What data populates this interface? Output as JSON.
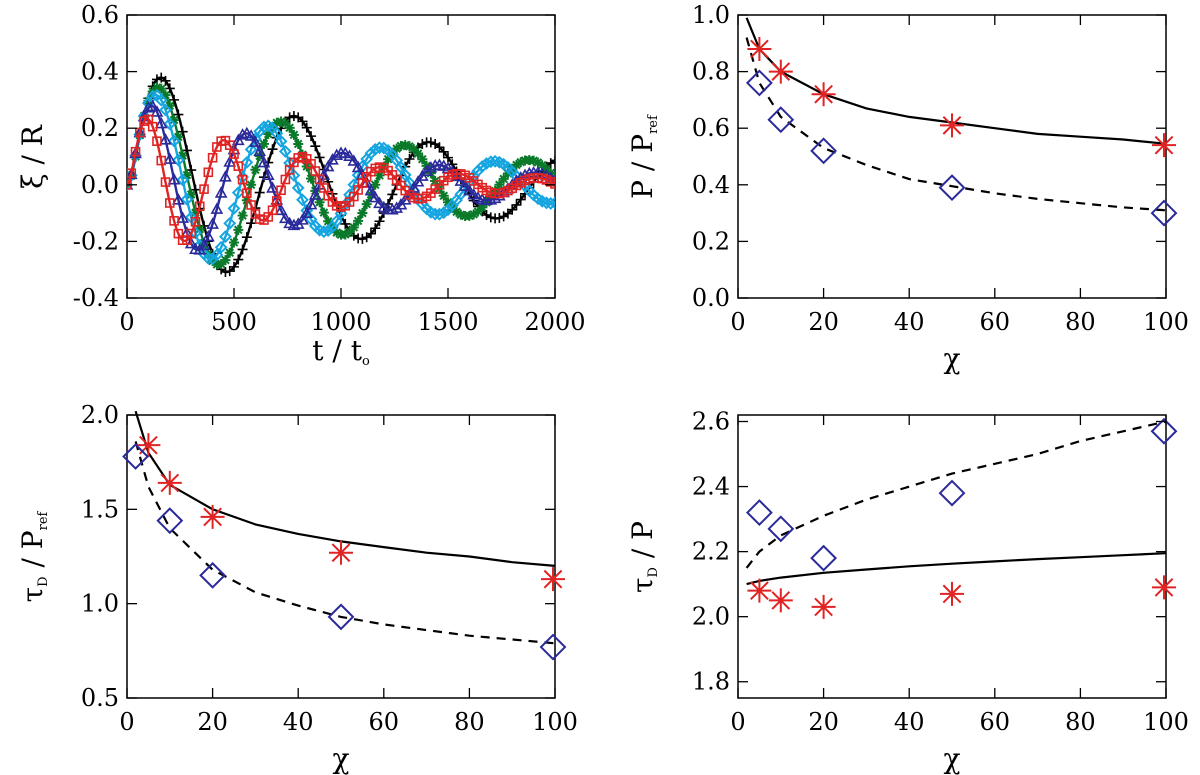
{
  "chart_data": [
    {
      "id": "xi",
      "type": "line",
      "ylabel": "ξ / R",
      "xlabel": "t / t",
      "xlabel_sub": "o",
      "xlim": [
        0,
        2000
      ],
      "ylim": [
        -0.4,
        0.6
      ],
      "xticks": [
        0,
        500,
        1000,
        1500,
        2000
      ],
      "yticks": [
        -0.4,
        -0.2,
        0.0,
        0.2,
        0.4,
        0.6
      ],
      "x_tick_labels": [
        "0",
        "500",
        "1000",
        "1500",
        "2000"
      ],
      "y_tick_labels": [
        "-0.4",
        "-0.2",
        "0.0",
        "0.2",
        "0.4",
        "0.6"
      ],
      "series": [
        {
          "name": "black",
          "color": "#000000",
          "marker": "plus",
          "amplitude": 0.44,
          "period": 630,
          "decay_time": 1320,
          "rise_time": 45
        },
        {
          "name": "green",
          "color": "#0a7a2a",
          "marker": "asterisk",
          "amplitude": 0.4,
          "period": 580,
          "decay_time": 1240,
          "rise_time": 42
        },
        {
          "name": "cyan",
          "color": "#15a5e0",
          "marker": "diamond",
          "amplitude": 0.37,
          "period": 530,
          "decay_time": 1150,
          "rise_time": 40
        },
        {
          "name": "navy",
          "color": "#2a2a9a",
          "marker": "triangle",
          "amplitude": 0.33,
          "period": 450,
          "decay_time": 940,
          "rise_time": 37
        },
        {
          "name": "red",
          "color": "#e02424",
          "marker": "square",
          "amplitude": 0.28,
          "period": 365,
          "decay_time": 790,
          "rise_time": 34
        }
      ]
    },
    {
      "id": "p",
      "type": "scatter",
      "ylabel": "P / P",
      "ylabel_sub": "ref",
      "xlabel": "χ",
      "xlim": [
        0,
        100
      ],
      "ylim": [
        0.0,
        1.0
      ],
      "xticks": [
        0,
        20,
        40,
        60,
        80,
        100
      ],
      "yticks": [
        0.0,
        0.2,
        0.4,
        0.6,
        0.8,
        1.0
      ],
      "x_tick_labels": [
        "0",
        "20",
        "40",
        "60",
        "80",
        "100"
      ],
      "y_tick_labels": [
        "0.0",
        "0.2",
        "0.4",
        "0.6",
        "0.8",
        "1.0"
      ],
      "series": [
        {
          "name": "stars",
          "marker": "asterisk",
          "color": "#e02424",
          "x": [
            5,
            10,
            20,
            50,
            100
          ],
          "y": [
            0.88,
            0.8,
            0.72,
            0.61,
            0.54
          ]
        },
        {
          "name": "diamonds",
          "marker": "diamond",
          "color": "#2a2a9a",
          "x": [
            5,
            10,
            20,
            50,
            100
          ],
          "y": [
            0.76,
            0.63,
            0.52,
            0.39,
            0.3
          ]
        },
        {
          "name": "solid fit",
          "line": "solid",
          "color": "#000000",
          "x": [
            2,
            5,
            10,
            20,
            30,
            40,
            50,
            60,
            70,
            80,
            90,
            100
          ],
          "y": [
            0.99,
            0.88,
            0.8,
            0.72,
            0.67,
            0.64,
            0.62,
            0.6,
            0.58,
            0.57,
            0.56,
            0.545
          ]
        },
        {
          "name": "dashed fit",
          "line": "dashed",
          "color": "#000000",
          "x": [
            2,
            5,
            10,
            20,
            30,
            40,
            50,
            60,
            70,
            80,
            90,
            100
          ],
          "y": [
            0.92,
            0.76,
            0.64,
            0.53,
            0.47,
            0.42,
            0.395,
            0.37,
            0.35,
            0.335,
            0.32,
            0.31
          ]
        }
      ]
    },
    {
      "id": "taup",
      "type": "scatter",
      "ylabel": "τ / P",
      "ylabel_sub_d": "D",
      "ylabel_sub": "ref",
      "xlabel": "χ",
      "xlim": [
        0,
        100
      ],
      "ylim": [
        0.5,
        2.0
      ],
      "xticks": [
        0,
        20,
        40,
        60,
        80,
        100
      ],
      "yticks": [
        0.5,
        1.0,
        1.5,
        2.0
      ],
      "x_tick_labels": [
        "0",
        "20",
        "40",
        "60",
        "80",
        "100"
      ],
      "y_tick_labels": [
        "0.5",
        "1.0",
        "1.5",
        "2.0"
      ],
      "series": [
        {
          "name": "stars",
          "marker": "asterisk",
          "color": "#e02424",
          "x": [
            5,
            10,
            20,
            50,
            100
          ],
          "y": [
            1.84,
            1.64,
            1.46,
            1.27,
            1.13
          ]
        },
        {
          "name": "diamonds",
          "marker": "diamond",
          "color": "#2a2a9a",
          "x": [
            2,
            10,
            20,
            50,
            100
          ],
          "y": [
            1.78,
            1.44,
            1.15,
            0.93,
            0.77
          ]
        },
        {
          "name": "solid fit",
          "line": "solid",
          "color": "#000000",
          "x": [
            2,
            5,
            10,
            20,
            30,
            40,
            50,
            60,
            70,
            80,
            90,
            100
          ],
          "y": [
            2.02,
            1.8,
            1.63,
            1.5,
            1.42,
            1.37,
            1.33,
            1.3,
            1.27,
            1.25,
            1.22,
            1.2
          ]
        },
        {
          "name": "dashed fit",
          "line": "dashed",
          "color": "#000000",
          "x": [
            2,
            5,
            10,
            20,
            30,
            40,
            50,
            60,
            70,
            80,
            90,
            100
          ],
          "y": [
            1.86,
            1.62,
            1.4,
            1.18,
            1.06,
            0.99,
            0.93,
            0.89,
            0.86,
            0.83,
            0.81,
            0.79
          ]
        }
      ]
    },
    {
      "id": "tau",
      "type": "scatter",
      "ylabel": "τ / P",
      "ylabel_sub_d": "D",
      "xlabel": "χ",
      "xlim": [
        0,
        100
      ],
      "ylim": [
        1.75,
        2.62
      ],
      "xticks": [
        0,
        20,
        40,
        60,
        80,
        100
      ],
      "yticks": [
        1.8,
        2.0,
        2.2,
        2.4,
        2.6
      ],
      "x_tick_labels": [
        "0",
        "20",
        "40",
        "60",
        "80",
        "100"
      ],
      "y_tick_labels": [
        "1.8",
        "2.0",
        "2.2",
        "2.4",
        "2.6"
      ],
      "series": [
        {
          "name": "stars",
          "marker": "asterisk",
          "color": "#e02424",
          "x": [
            5,
            10,
            20,
            50,
            100
          ],
          "y": [
            2.08,
            2.05,
            2.03,
            2.07,
            2.09
          ]
        },
        {
          "name": "diamonds",
          "marker": "diamond",
          "color": "#2a2a9a",
          "x": [
            5,
            10,
            20,
            50,
            100
          ],
          "y": [
            2.32,
            2.27,
            2.18,
            2.38,
            2.57
          ]
        },
        {
          "name": "solid fit",
          "line": "solid",
          "color": "#000000",
          "x": [
            2,
            5,
            10,
            20,
            30,
            40,
            50,
            60,
            70,
            80,
            90,
            100
          ],
          "y": [
            2.1,
            2.11,
            2.12,
            2.135,
            2.145,
            2.155,
            2.163,
            2.17,
            2.177,
            2.183,
            2.189,
            2.195
          ]
        },
        {
          "name": "dashed fit",
          "line": "dashed",
          "color": "#000000",
          "x": [
            2,
            5,
            10,
            20,
            30,
            40,
            50,
            60,
            70,
            80,
            90,
            100
          ],
          "y": [
            2.15,
            2.2,
            2.25,
            2.31,
            2.36,
            2.4,
            2.44,
            2.47,
            2.5,
            2.54,
            2.57,
            2.6
          ]
        }
      ]
    }
  ]
}
